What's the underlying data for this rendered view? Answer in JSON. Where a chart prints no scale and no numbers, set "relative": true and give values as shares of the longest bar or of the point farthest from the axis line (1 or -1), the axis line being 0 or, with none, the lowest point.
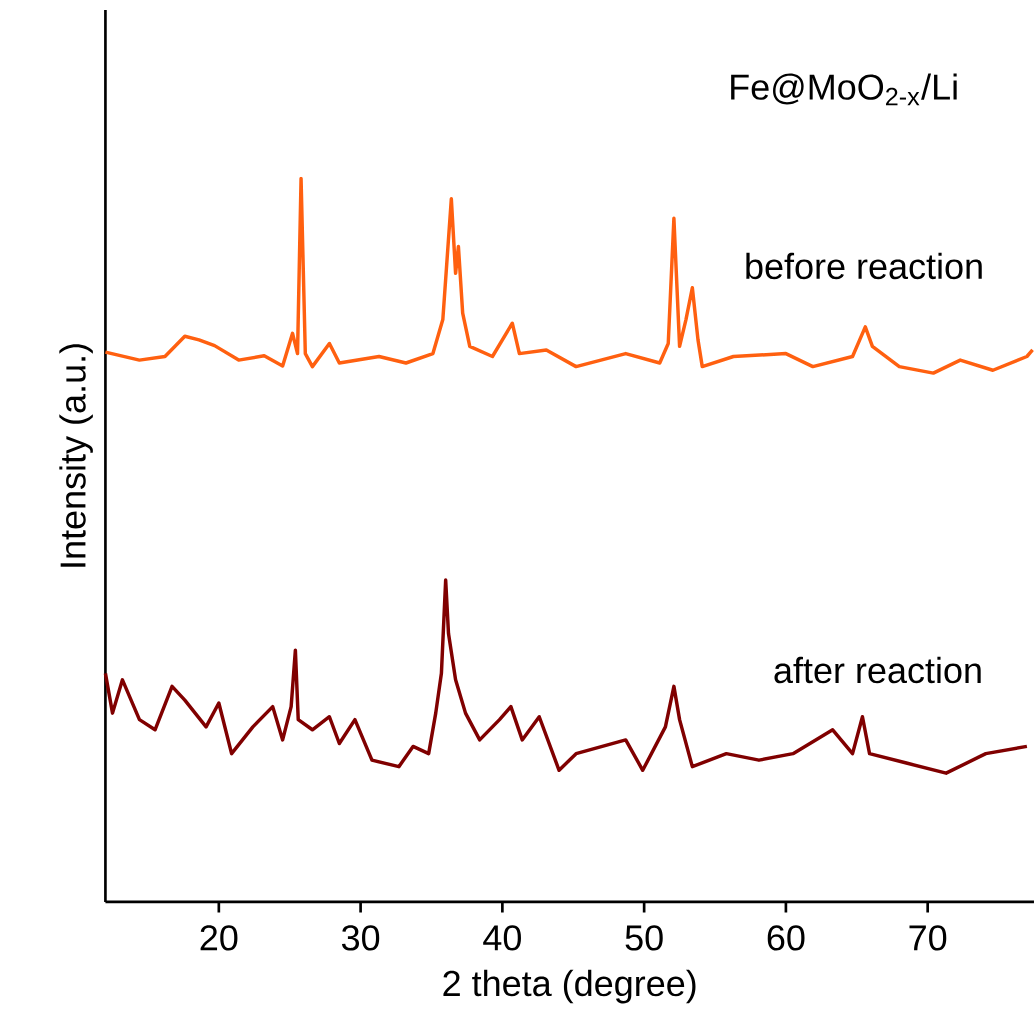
{
  "chart_data": {
    "type": "line",
    "relative": true,
    "xlabel": "2 theta (degree)",
    "ylabel": "Intensity (a.u.)",
    "annotations": [
      "Fe@MoO$_{2-x}$/Li"
    ],
    "xlim": [
      12,
      77.5
    ],
    "xticks": [
      20,
      30,
      40,
      50,
      60,
      70
    ],
    "legend": false,
    "grid": false,
    "marker": "none",
    "line_style": "solid",
    "series": [
      {
        "name": "before reaction",
        "color": "#ff6010",
        "x": [
          12.0,
          14.4,
          16.2,
          17.6,
          18.6,
          19.7,
          21.4,
          23.2,
          24.5,
          25.2,
          25.55,
          25.8,
          26.1,
          26.6,
          27.8,
          28.5,
          31.3,
          33.2,
          35.1,
          35.8,
          36.4,
          36.7,
          36.9,
          37.2,
          37.7,
          39.3,
          40.7,
          41.2,
          43.1,
          45.2,
          48.7,
          51.1,
          51.7,
          52.1,
          52.5,
          52.95,
          53.4,
          53.8,
          54.1,
          56.3,
          60.0,
          61.9,
          64.7,
          65.6,
          66.1,
          68.0,
          70.4,
          72.3,
          74.6,
          77.0,
          77.4
        ],
        "values": [
          0.76,
          0.749,
          0.754,
          0.782,
          0.777,
          0.769,
          0.749,
          0.755,
          0.741,
          0.786,
          0.758,
          1.0,
          0.758,
          0.74,
          0.772,
          0.745,
          0.754,
          0.745,
          0.758,
          0.805,
          0.972,
          0.869,
          0.906,
          0.814,
          0.768,
          0.754,
          0.8,
          0.758,
          0.763,
          0.74,
          0.758,
          0.745,
          0.772,
          0.945,
          0.768,
          0.805,
          0.849,
          0.777,
          0.74,
          0.754,
          0.758,
          0.74,
          0.754,
          0.795,
          0.768,
          0.74,
          0.731,
          0.749,
          0.735,
          0.754,
          0.763
        ]
      },
      {
        "name": "after reaction",
        "color": "#800000",
        "x": [
          12.0,
          12.5,
          13.2,
          14.4,
          15.5,
          16.7,
          17.6,
          19.1,
          20.0,
          20.9,
          22.4,
          23.8,
          24.5,
          25.1,
          25.4,
          25.6,
          26.6,
          27.8,
          28.5,
          29.6,
          30.8,
          32.7,
          33.7,
          34.8,
          35.3,
          35.7,
          36.0,
          36.2,
          36.7,
          37.4,
          38.4,
          39.8,
          40.6,
          41.4,
          42.6,
          44.0,
          45.2,
          48.7,
          49.9,
          51.5,
          52.1,
          52.5,
          53.4,
          55.8,
          58.1,
          60.5,
          63.3,
          64.7,
          65.4,
          65.9,
          68.5,
          71.3,
          74.1,
          77.0
        ],
        "values": [
          0.316,
          0.261,
          0.307,
          0.252,
          0.238,
          0.298,
          0.279,
          0.242,
          0.275,
          0.205,
          0.242,
          0.27,
          0.224,
          0.27,
          0.348,
          0.252,
          0.238,
          0.256,
          0.219,
          0.252,
          0.196,
          0.187,
          0.215,
          0.205,
          0.261,
          0.316,
          0.445,
          0.371,
          0.307,
          0.261,
          0.224,
          0.252,
          0.27,
          0.224,
          0.256,
          0.182,
          0.205,
          0.224,
          0.182,
          0.242,
          0.298,
          0.252,
          0.187,
          0.205,
          0.196,
          0.205,
          0.238,
          0.205,
          0.256,
          0.205,
          0.192,
          0.178,
          0.205,
          0.215
        ]
      }
    ]
  }
}
